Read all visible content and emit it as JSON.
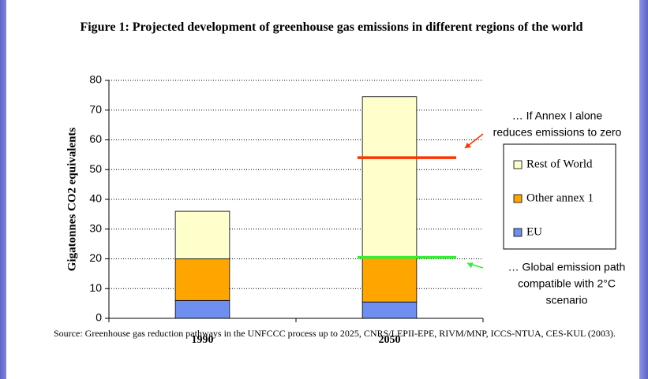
{
  "chart_data": {
    "type": "stacked_bar",
    "title": "Figure 1: Projected development of greenhouse gas emissions in different regions of the world",
    "y_label": "Gigatonnes CO2 equivalents",
    "categories": [
      "1990",
      "2050"
    ],
    "series": [
      {
        "name": "EU",
        "color": "#6f8ff0",
        "values": [
          6,
          5.5
        ]
      },
      {
        "name": "Other annex 1",
        "color": "#ffa500",
        "values": [
          14,
          15
        ]
      },
      {
        "name": "Rest of World",
        "color": "#ffffcc",
        "values": [
          16,
          54
        ]
      }
    ],
    "ylim": [
      0,
      80
    ],
    "yticks": [
      0,
      10,
      20,
      30,
      40,
      50,
      60,
      70,
      80
    ],
    "grid": true,
    "legend": "right",
    "reference_lines": [
      {
        "value": 54,
        "color": "#ff3300",
        "lines": [
          "… If Annex I alone",
          "reduces emissions to zero"
        ]
      },
      {
        "value": 20.5,
        "color": "#33ee33",
        "lines": [
          "… Global emission path",
          "compatible with 2°C",
          "scenario"
        ]
      }
    ],
    "source": "Source: Greenhouse gas reduction pathways in the UNFCCC process up to 2025, CNRS/LEPII-EPE, RIVM/MNP, ICCS-NTUA, CES-KUL (2003)."
  }
}
